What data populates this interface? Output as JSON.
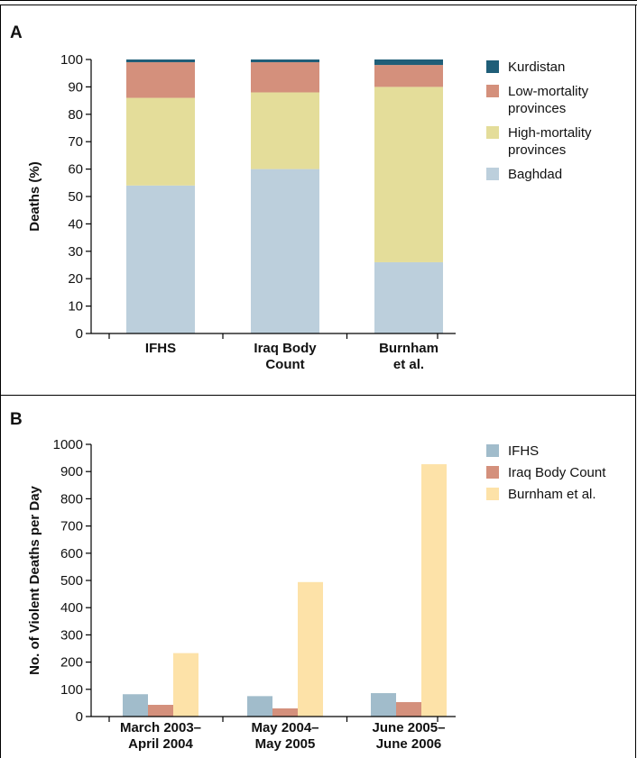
{
  "chart_data": [
    {
      "panel": "A",
      "type": "bar",
      "stacked": true,
      "ylabel": "Deaths (%)",
      "ylim": [
        0,
        100
      ],
      "yticks": [
        "0",
        "10",
        "20",
        "30",
        "40",
        "50",
        "60",
        "70",
        "80",
        "90",
        "100"
      ],
      "categories": [
        [
          "IFHS"
        ],
        [
          "Iraq Body",
          "Count"
        ],
        [
          "Burnham",
          "et al."
        ]
      ],
      "series": [
        {
          "name": "Baghdad",
          "color": "#bccfdc",
          "values": [
            54,
            60,
            26
          ]
        },
        {
          "name": "High-mortality provinces",
          "color": "#e4dd9a",
          "values": [
            32,
            28,
            64
          ]
        },
        {
          "name": "Low-mortality provinces",
          "color": "#d4907c",
          "values": [
            13,
            11,
            8
          ]
        },
        {
          "name": "Kurdistan",
          "color": "#1f5e78",
          "values": [
            1,
            1,
            2
          ]
        }
      ],
      "legend": {
        "placement": "right",
        "items": [
          {
            "label": "Kurdistan",
            "color": "#1f5e78"
          },
          {
            "label": "Low-mortality provinces",
            "color": "#d4907c"
          },
          {
            "label": "High-mortality provinces",
            "color": "#e4dd9a"
          },
          {
            "label": "Baghdad",
            "color": "#bccfdc"
          }
        ]
      },
      "grid": false
    },
    {
      "panel": "B",
      "type": "bar",
      "stacked": false,
      "ylabel": "No. of Violent Deaths per Day",
      "ylim": [
        0,
        1000
      ],
      "yticks": [
        "0",
        "100",
        "200",
        "300",
        "400",
        "500",
        "600",
        "700",
        "800",
        "900",
        "1000"
      ],
      "categories": [
        [
          "March 2003–",
          "April 2004"
        ],
        [
          "May 2004–",
          "May 2005"
        ],
        [
          "June 2005–",
          "June 2006"
        ]
      ],
      "series": [
        {
          "name": "IFHS",
          "color": "#a1bccb",
          "values": [
            82,
            75,
            86
          ]
        },
        {
          "name": "Iraq Body Count",
          "color": "#d4907c",
          "values": [
            43,
            30,
            53
          ]
        },
        {
          "name": "Burnham et al.",
          "color": "#fde2a8",
          "values": [
            233,
            494,
            927
          ]
        }
      ],
      "legend": {
        "placement": "right",
        "items": [
          {
            "label": "IFHS",
            "color": "#a1bccb"
          },
          {
            "label": "Iraq Body Count",
            "color": "#d4907c"
          },
          {
            "label": "Burnham et al.",
            "color": "#fde2a8"
          }
        ]
      },
      "grid": false
    }
  ],
  "panels": {
    "a": {
      "letter": "A"
    },
    "b": {
      "letter": "B"
    }
  }
}
